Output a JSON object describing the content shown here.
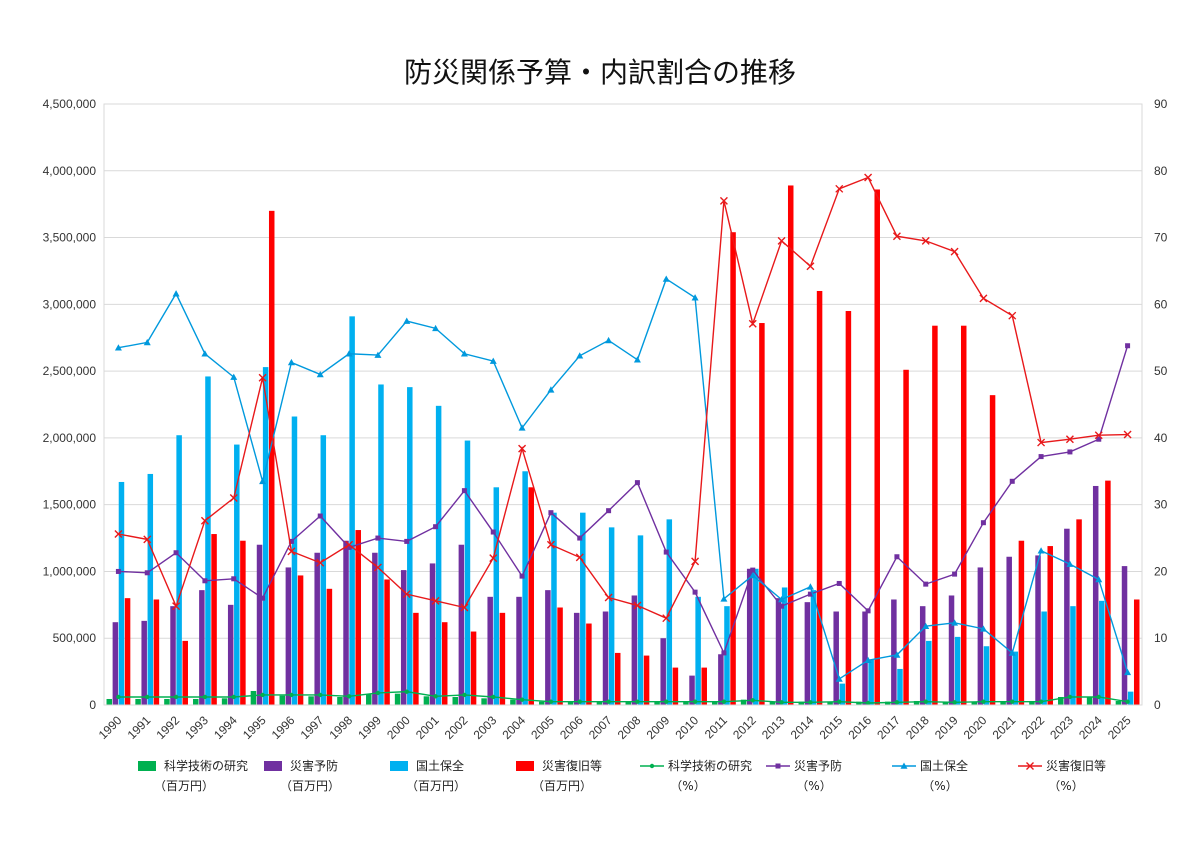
{
  "chart_data": {
    "type": "bar",
    "title": "防災関係予算・内訳割合の推移",
    "categories": [
      "1990",
      "1991",
      "1992",
      "1993",
      "1994",
      "1995",
      "1996",
      "1997",
      "1998",
      "1999",
      "2000",
      "2001",
      "2002",
      "2003",
      "2004",
      "2005",
      "2006",
      "2007",
      "2008",
      "2009",
      "2010",
      "2011",
      "2012",
      "2013",
      "2014",
      "2015",
      "2016",
      "2017",
      "2018",
      "2019",
      "2020",
      "2021",
      "2022",
      "2023",
      "2024",
      "2025"
    ],
    "left_axis": {
      "ylim": [
        0,
        4500000
      ],
      "ticks": [
        "0",
        "500,000",
        "1,000,000",
        "1,500,000",
        "2,000,000",
        "2,500,000",
        "3,000,000",
        "3,500,000",
        "4,000,000",
        "4,500,000"
      ]
    },
    "right_axis": {
      "ylim": [
        0,
        90
      ],
      "ticks": [
        "0",
        "10",
        "20",
        "30",
        "40",
        "50",
        "60",
        "70",
        "80",
        "90"
      ]
    },
    "bar_series": [
      {
        "name": "科学技術の研究",
        "unit": "（百万円）",
        "color": "#00b050",
        "values": [
          45000,
          45000,
          45000,
          45000,
          50000,
          105000,
          70000,
          65000,
          60000,
          80000,
          85000,
          65000,
          60000,
          50000,
          40000,
          25000,
          25000,
          25000,
          25000,
          25000,
          25000,
          25000,
          40000,
          25000,
          25000,
          25000,
          25000,
          25000,
          30000,
          25000,
          25000,
          30000,
          30000,
          60000,
          60000,
          30000
        ]
      },
      {
        "name": "災害予防",
        "unit": "（百万円）",
        "color": "#7030a0",
        "values": [
          620000,
          630000,
          740000,
          860000,
          750000,
          1200000,
          1030000,
          1140000,
          1230000,
          1140000,
          1010000,
          1060000,
          1200000,
          810000,
          810000,
          860000,
          690000,
          700000,
          820000,
          500000,
          220000,
          380000,
          1020000,
          800000,
          770000,
          700000,
          700000,
          790000,
          740000,
          820000,
          1030000,
          1110000,
          1120000,
          1320000,
          1640000,
          1040000
        ]
      },
      {
        "name": "国土保全",
        "unit": "（百万円）",
        "color": "#00b0f0",
        "values": [
          1670000,
          1730000,
          2020000,
          2460000,
          1950000,
          2530000,
          2160000,
          2020000,
          2910000,
          2400000,
          2380000,
          2240000,
          1980000,
          1630000,
          1750000,
          1440000,
          1440000,
          1330000,
          1270000,
          1390000,
          810000,
          740000,
          1020000,
          880000,
          860000,
          160000,
          340000,
          270000,
          480000,
          510000,
          440000,
          400000,
          700000,
          740000,
          780000,
          100000
        ]
      },
      {
        "name": "災害復旧等",
        "unit": "（百万円）",
        "color": "#ff0000",
        "values": [
          800000,
          790000,
          480000,
          1280000,
          1230000,
          3700000,
          970000,
          870000,
          1310000,
          940000,
          690000,
          620000,
          550000,
          690000,
          1630000,
          730000,
          610000,
          390000,
          370000,
          280000,
          280000,
          3540000,
          2860000,
          3890000,
          3100000,
          2950000,
          3860000,
          2510000,
          2840000,
          2840000,
          2320000,
          1230000,
          1190000,
          1390000,
          1680000,
          790000
        ]
      }
    ],
    "line_series": [
      {
        "name": "科学技術の研究",
        "unit": "（%）",
        "color": "#00b050",
        "marker": "dot",
        "values": [
          1.2,
          1.2,
          1.2,
          1.2,
          1.2,
          1.5,
          1.5,
          1.5,
          1.3,
          1.8,
          2.0,
          1.3,
          1.5,
          1.2,
          0.8,
          0.5,
          0.5,
          0.5,
          0.5,
          0.5,
          0.5,
          0.5,
          0.7,
          0.4,
          0.4,
          0.5,
          0.3,
          0.4,
          0.5,
          0.4,
          0.5,
          0.5,
          0.5,
          1.2,
          1.2,
          0.5
        ]
      },
      {
        "name": "災害予防",
        "unit": "（%）",
        "color": "#7030a0",
        "marker": "square",
        "values": [
          20.0,
          19.8,
          22.8,
          18.6,
          18.9,
          16.0,
          24.5,
          28.3,
          23.6,
          25.0,
          24.5,
          26.7,
          32.1,
          25.9,
          19.3,
          28.8,
          25.0,
          29.1,
          33.3,
          22.9,
          16.9,
          7.8,
          20.2,
          14.8,
          16.6,
          18.2,
          14.1,
          22.2,
          18.1,
          19.6,
          27.3,
          33.5,
          37.2,
          37.9,
          39.8,
          53.8
        ]
      },
      {
        "name": "国土保全",
        "unit": "（%）",
        "color": "#0099dd",
        "marker": "triangle",
        "values": [
          53.5,
          54.3,
          61.6,
          52.6,
          49.1,
          33.5,
          51.3,
          49.5,
          52.6,
          52.4,
          57.5,
          56.4,
          52.6,
          51.5,
          41.5,
          47.2,
          52.3,
          54.6,
          51.7,
          63.8,
          61.0,
          15.9,
          19.4,
          15.8,
          17.7,
          3.9,
          6.7,
          7.5,
          11.8,
          12.3,
          11.4,
          7.8,
          23.1,
          21.1,
          18.8,
          4.9
        ]
      },
      {
        "name": "災害復旧等",
        "unit": "（%）",
        "color": "#e8191b",
        "marker": "x",
        "values": [
          25.6,
          24.8,
          14.8,
          27.6,
          31.0,
          49.0,
          23.0,
          21.3,
          24.0,
          20.6,
          16.6,
          15.6,
          14.6,
          22.0,
          38.4,
          24.0,
          22.1,
          16.1,
          14.9,
          13.0,
          21.5,
          75.5,
          57.1,
          69.5,
          65.7,
          77.3,
          79.0,
          70.2,
          69.5,
          67.9,
          60.9,
          58.3,
          39.3,
          39.8,
          40.4,
          40.5
        ]
      }
    ],
    "grid": true,
    "legend_position": "bottom"
  }
}
